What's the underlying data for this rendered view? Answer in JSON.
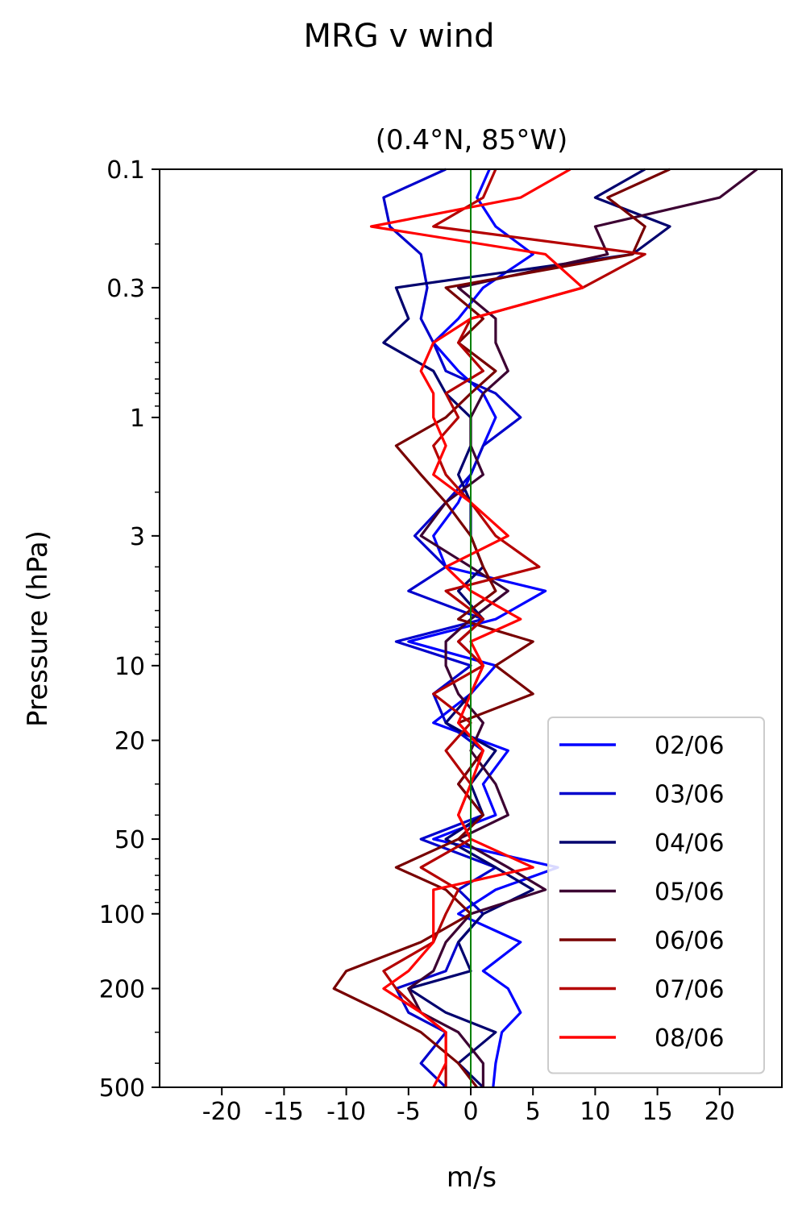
{
  "figure": {
    "title": "MRG v wind"
  },
  "chart_data": {
    "type": "line",
    "title": "(0.4°N, 85°W)",
    "xlabel": "m/s",
    "ylabel": "Pressure (hPa)",
    "xlim": [
      -25,
      25
    ],
    "ylim": [
      500,
      0.1
    ],
    "y_scale": "log",
    "x_ticks": [
      -20,
      -15,
      -10,
      -5,
      0,
      5,
      10,
      15,
      20
    ],
    "y_ticks": [
      0.1,
      0.3,
      1,
      3,
      10,
      20,
      50,
      100,
      200,
      500
    ],
    "reference_line": {
      "x": 0,
      "color": "#008000"
    },
    "legend": {
      "position": "lower-right"
    },
    "pressure_levels": [
      0.1,
      0.13,
      0.17,
      0.22,
      0.3,
      0.4,
      0.5,
      0.65,
      0.8,
      1.0,
      1.3,
      1.7,
      2.2,
      3.0,
      4.0,
      5.0,
      6.5,
      8.0,
      10,
      13,
      17,
      22,
      30,
      40,
      50,
      65,
      80,
      100,
      130,
      170,
      200,
      250,
      300,
      400,
      500
    ],
    "series": [
      {
        "name": "02/06",
        "color": "#0000ff",
        "values": [
          1.5,
          0.5,
          2,
          5,
          1,
          -1,
          -3,
          -1,
          1,
          2,
          1,
          0,
          -1,
          -3,
          -2,
          6,
          2,
          -5,
          2,
          0,
          -3,
          3,
          1,
          2,
          -3,
          7,
          2,
          -1,
          4,
          1,
          3,
          4,
          2.5,
          2,
          1.8
        ]
      },
      {
        "name": "03/06",
        "color": "#0000cc",
        "values": [
          -2,
          -7,
          -6.5,
          -4,
          -3.5,
          -4,
          -3,
          -2,
          2,
          4,
          1,
          0,
          -2,
          -4.5,
          -2,
          -5,
          1,
          -6,
          0,
          -3,
          -2,
          1,
          -1,
          1,
          -4,
          2,
          -1,
          1,
          -1,
          -2,
          -6,
          -5,
          -2,
          -4,
          -2
        ]
      },
      {
        "name": "04/06",
        "color": "#00006e",
        "values": [
          14,
          10,
          16,
          13,
          -6,
          -5,
          -7,
          -3,
          -2,
          0,
          0,
          -1,
          0,
          0,
          1,
          -1,
          1,
          -1,
          1,
          0,
          -2,
          2,
          0,
          1,
          -2,
          2,
          5,
          1,
          -1,
          0,
          -5,
          -2,
          2,
          -1,
          1
        ]
      },
      {
        "name": "05/06",
        "color": "#3c0032",
        "values": [
          23,
          20,
          10,
          11,
          -1,
          2,
          2,
          3,
          1,
          0,
          0,
          1,
          -2,
          -4,
          0,
          3,
          0,
          -2,
          -2,
          -1,
          1,
          0,
          2,
          3,
          -1,
          3,
          6,
          0,
          -2,
          -3,
          -5,
          -4,
          -1,
          1,
          1
        ]
      },
      {
        "name": "06/06",
        "color": "#780000",
        "values": [
          16,
          11,
          14,
          13,
          -2,
          1,
          -1,
          2,
          0,
          -2,
          -6,
          -4,
          -2,
          0,
          1,
          2,
          -1,
          5,
          2,
          5,
          -1,
          1,
          -1,
          1,
          -1,
          -6,
          -2,
          0,
          -4,
          -10,
          -11,
          -7,
          -4,
          -1,
          0.5
        ]
      },
      {
        "name": "07/06",
        "color": "#b40000",
        "values": [
          2,
          1,
          -3,
          14,
          9,
          0,
          -1,
          1,
          -2,
          -1,
          -3,
          -2,
          0,
          2,
          5.5,
          -2,
          1,
          -1,
          1,
          -3,
          0,
          -2,
          0,
          -1,
          0,
          -4,
          -1,
          -2,
          -3,
          -7,
          -6,
          -4,
          -2,
          -2,
          -2
        ]
      },
      {
        "name": "08/06",
        "color": "#ff0000",
        "values": [
          8,
          4,
          -8,
          6,
          9,
          0,
          -3,
          -4,
          -3,
          -3,
          -2,
          -3,
          0,
          3,
          -2,
          0,
          4,
          0,
          1,
          0,
          -1,
          1,
          0,
          -1,
          0,
          5,
          -3,
          -3,
          -3,
          -5,
          -7,
          -4,
          -2,
          -2,
          -3
        ]
      }
    ]
  }
}
